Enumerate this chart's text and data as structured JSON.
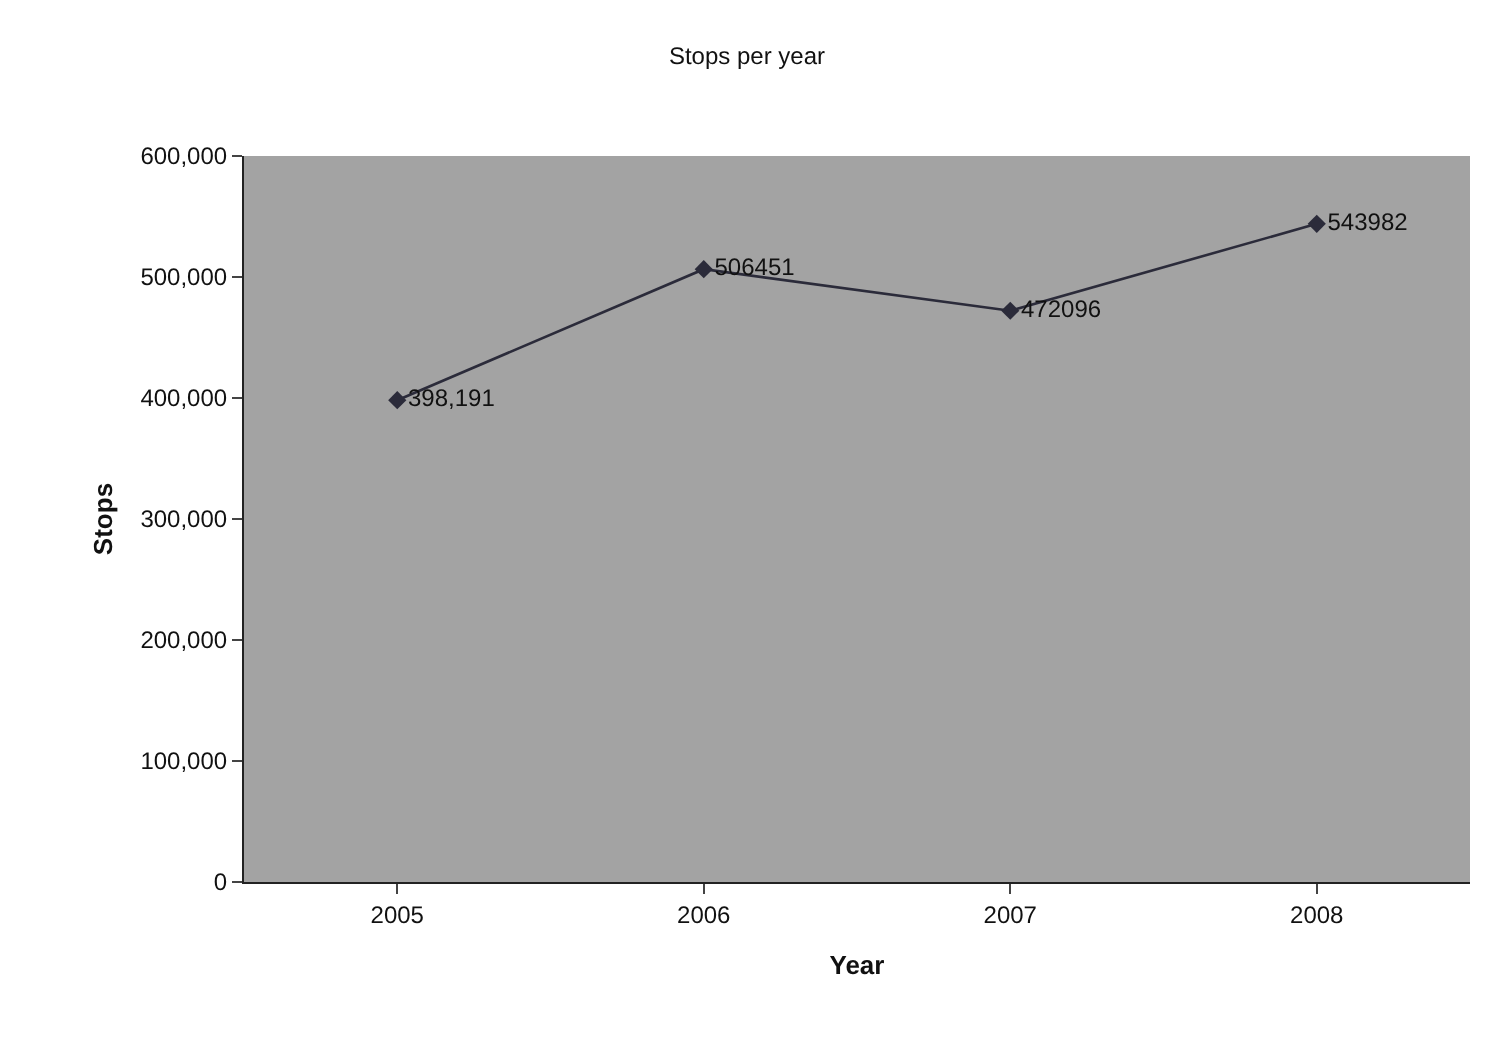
{
  "chart_data": {
    "type": "line",
    "title": "Stops per year",
    "xlabel": "Year",
    "ylabel": "Stops",
    "categories": [
      "2005",
      "2006",
      "2007",
      "2008"
    ],
    "series": [
      {
        "color": "#2b2b3a",
        "values": [
          398191,
          506451,
          472096,
          543982
        ],
        "value_labels": [
          "398,191",
          "506451",
          "472096",
          "543982"
        ]
      }
    ],
    "ylim": [
      0,
      600000
    ],
    "yticks": [
      {
        "value": 0,
        "label": "0"
      },
      {
        "value": 100000,
        "label": "100,000"
      },
      {
        "value": 200000,
        "label": "200,000"
      },
      {
        "value": 300000,
        "label": "300,000"
      },
      {
        "value": 400000,
        "label": "400,000"
      },
      {
        "value": 500000,
        "label": "500,000"
      },
      {
        "value": 600000,
        "label": "600,000"
      }
    ],
    "grid": false,
    "marker": "diamond",
    "line_style": "solid"
  }
}
